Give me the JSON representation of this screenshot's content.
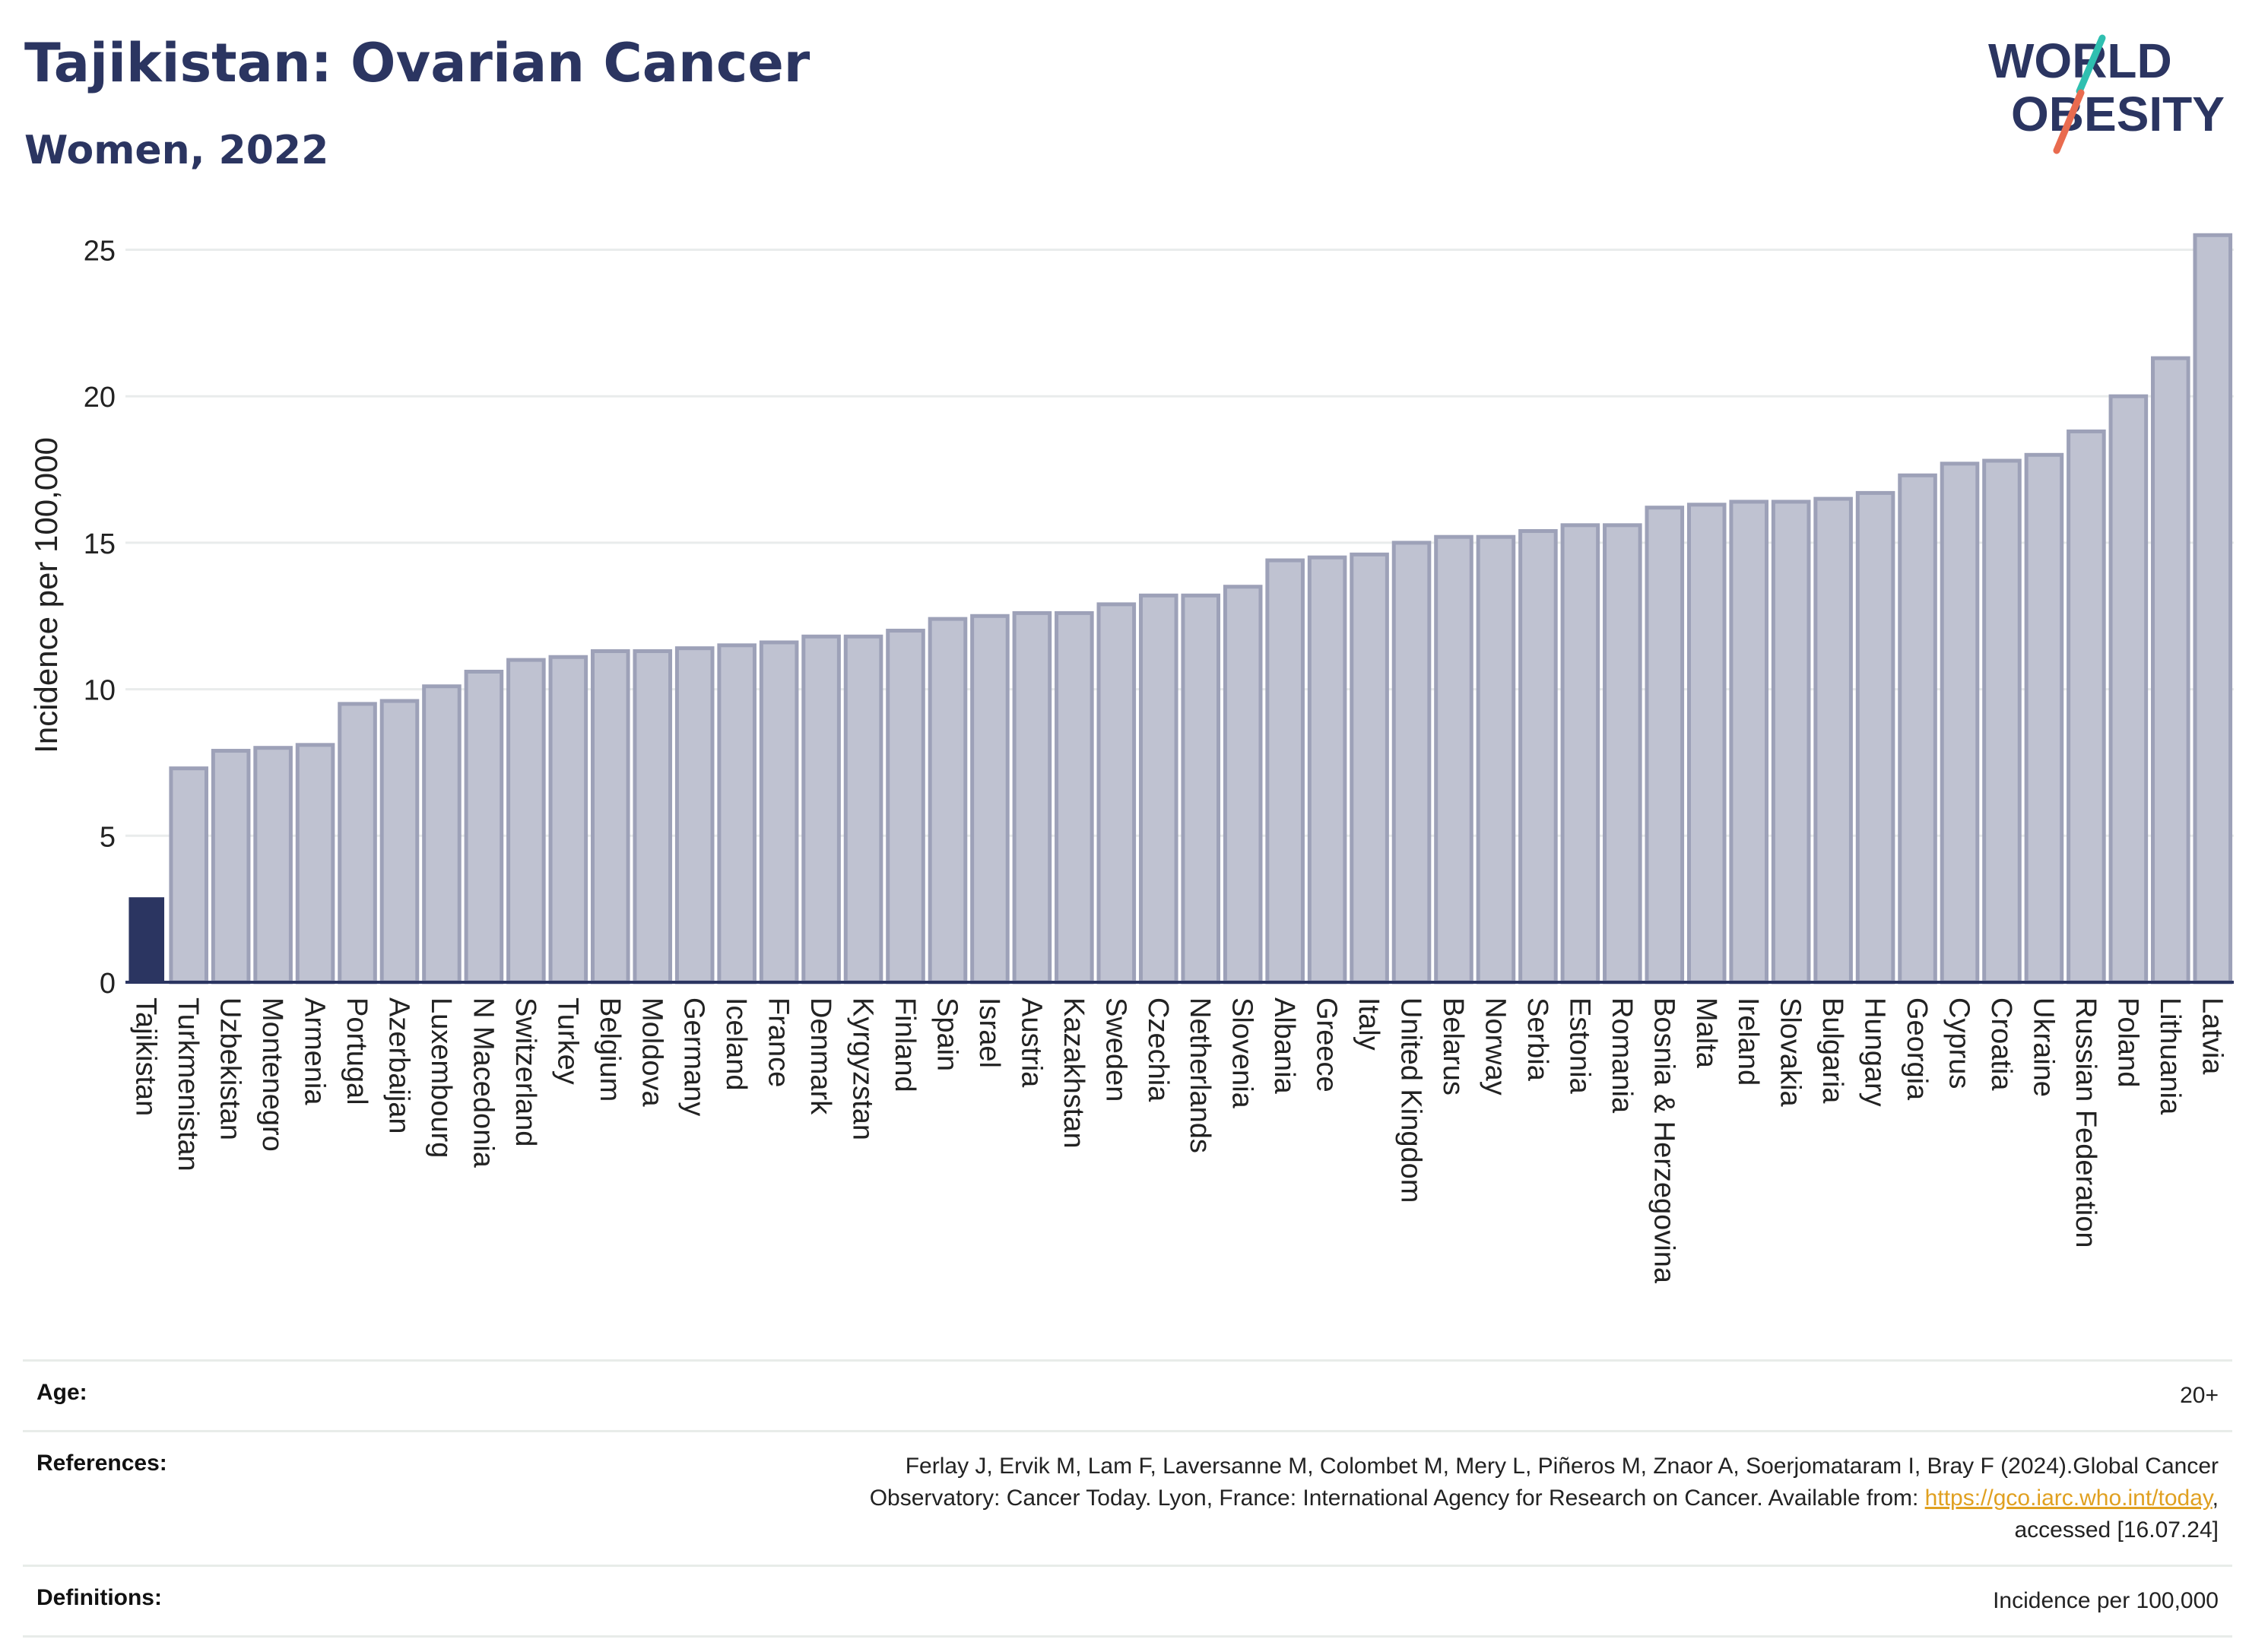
{
  "header": {
    "title": "Tajikistan: Ovarian Cancer",
    "subtitle": "Women, 2022"
  },
  "logo": {
    "line1": "WORLD",
    "line2": "OBESITY",
    "accent_colors": [
      "#2fbfb0",
      "#e96b4f"
    ]
  },
  "colors": {
    "highlight_bar": "#2b3561",
    "other_bar_fill": "#bfc2d1",
    "other_bar_stroke": "#9da1b8",
    "grid": "#e9ecec",
    "axis": "#2b3561"
  },
  "chart_data": {
    "type": "bar",
    "title": "",
    "xlabel": "",
    "ylabel": "Incidence per 100,000",
    "ylim": [
      0,
      26
    ],
    "yticks": [
      0,
      5,
      10,
      15,
      20,
      25
    ],
    "grid": true,
    "highlight": "Tajikistan",
    "categories": [
      "Tajikistan",
      "Turkmenistan",
      "Uzbekistan",
      "Montenegro",
      "Armenia",
      "Portugal",
      "Azerbaijan",
      "Luxembourg",
      "N Macedonia",
      "Switzerland",
      "Turkey",
      "Belgium",
      "Moldova",
      "Germany",
      "Iceland",
      "France",
      "Denmark",
      "Kyrgyzstan",
      "Finland",
      "Spain",
      "Israel",
      "Austria",
      "Kazakhstan",
      "Sweden",
      "Czechia",
      "Netherlands",
      "Slovenia",
      "Albania",
      "Greece",
      "Italy",
      "United Kingdom",
      "Belarus",
      "Norway",
      "Serbia",
      "Estonia",
      "Romania",
      "Bosnia & Herzegovina",
      "Malta",
      "Ireland",
      "Slovakia",
      "Bulgaria",
      "Hungary",
      "Georgia",
      "Cyprus",
      "Croatia",
      "Ukraine",
      "Russian Federation",
      "Poland",
      "Lithuania",
      "Latvia"
    ],
    "values": [
      2.9,
      7.3,
      7.9,
      8.0,
      8.1,
      9.5,
      9.6,
      10.1,
      10.6,
      11.0,
      11.1,
      11.3,
      11.3,
      11.4,
      11.5,
      11.6,
      11.8,
      11.8,
      12.0,
      12.4,
      12.5,
      12.6,
      12.6,
      12.9,
      13.2,
      13.2,
      13.5,
      14.4,
      14.5,
      14.6,
      15.0,
      15.2,
      15.2,
      15.4,
      15.6,
      15.6,
      16.2,
      16.3,
      16.4,
      16.4,
      16.5,
      16.7,
      17.3,
      17.7,
      17.8,
      18.0,
      18.8,
      20.0,
      21.3,
      25.5
    ]
  },
  "metadata": {
    "age_label": "Age:",
    "age_value": "20+",
    "references_label": "References:",
    "references_text_1": "Ferlay J, Ervik M, Lam F, Laversanne M, Colombet M, Mery L, Piñeros M, Znaor A, Soerjomataram I, Bray F (2024).Global Cancer",
    "references_text_2": "Observatory: Cancer Today. Lyon, France: International Agency for Research on Cancer. Available from: ",
    "references_link": "https://gco.iarc.who.int/today",
    "references_text_3": "accessed [16.07.24]",
    "definitions_label": "Definitions:",
    "definitions_value": "Incidence per 100,000"
  }
}
